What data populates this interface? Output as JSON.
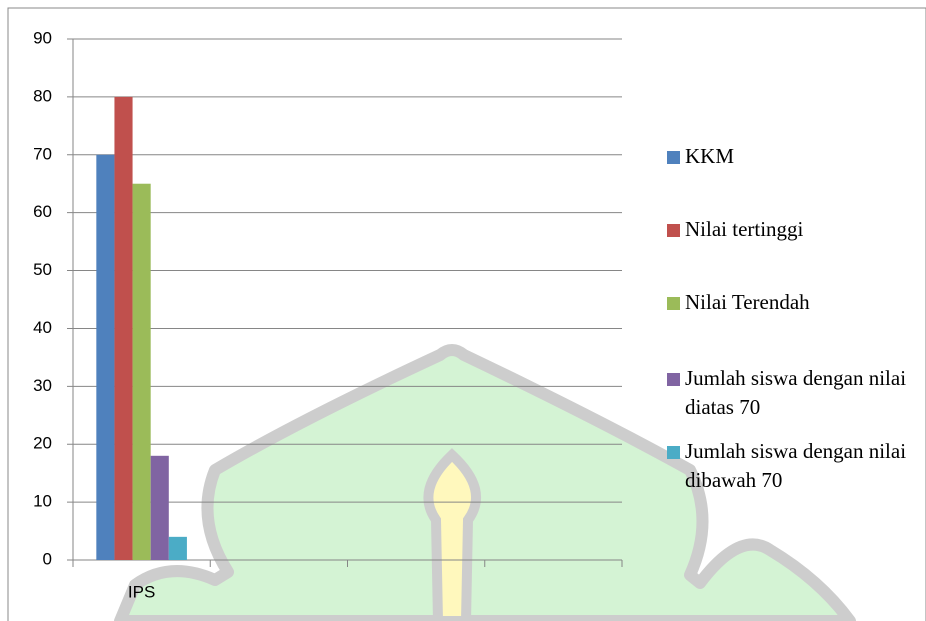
{
  "chart_data": {
    "type": "bar",
    "categories": [
      "IPS",
      null,
      null,
      null
    ],
    "series": [
      {
        "name": "KKM",
        "color": "#4f81bd",
        "values": [
          70,
          null,
          null,
          null
        ]
      },
      {
        "name": "Nilai tertinggi",
        "color": "#c0504d",
        "values": [
          80,
          null,
          null,
          null
        ]
      },
      {
        "name": "Nilai Terendah",
        "color": "#9bbb59",
        "values": [
          65,
          null,
          null,
          null
        ]
      },
      {
        "name": "Jumlah siswa dengan nilai diatas 70",
        "color": "#8064a2",
        "values": [
          18,
          null,
          null,
          null
        ]
      },
      {
        "name": "Jumlah siswa dengan nilai dibawah 70",
        "color": "#4bacc6",
        "values": [
          4,
          null,
          null,
          null
        ]
      }
    ],
    "ylim": [
      0,
      90
    ],
    "yticks": [
      0,
      10,
      20,
      30,
      40,
      50,
      60,
      70,
      80,
      90
    ],
    "grid": true,
    "legend": "right"
  }
}
